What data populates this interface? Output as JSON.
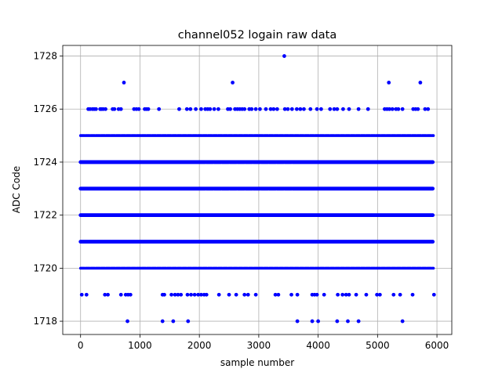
{
  "chart_data": {
    "type": "scatter",
    "title": "channel052 logain raw data",
    "xlabel": "sample number",
    "ylabel": "ADC Code",
    "xlim": [
      -300,
      6250
    ],
    "ylim": [
      1717.5,
      1728.4
    ],
    "xticks": [
      0,
      1000,
      2000,
      3000,
      4000,
      5000,
      6000
    ],
    "yticks": [
      1718,
      1720,
      1722,
      1724,
      1726,
      1728
    ],
    "grid": true,
    "marker_color": "#0000ff",
    "n_samples": 5940,
    "dense_levels": [
      {
        "y": 1720,
        "x_start": 0,
        "x_end": 5940
      },
      {
        "y": 1721,
        "x_start": 0,
        "x_end": 5940
      },
      {
        "y": 1722,
        "x_start": 0,
        "x_end": 5940
      },
      {
        "y": 1723,
        "x_start": 0,
        "x_end": 5940
      },
      {
        "y": 1724,
        "x_start": 0,
        "x_end": 5940
      },
      {
        "y": 1725,
        "x_start": 0,
        "x_end": 5940
      }
    ],
    "sparse_points": [
      {
        "y": 1728,
        "x": [
          3430
        ]
      },
      {
        "y": 1727,
        "x": [
          730,
          2560,
          5190,
          5720
        ]
      },
      {
        "y": 1726,
        "x": [
          130,
          160,
          200,
          230,
          260,
          330,
          350,
          380,
          420,
          540,
          570,
          640,
          680,
          900,
          940,
          980,
          1080,
          1110,
          1140,
          1320,
          1660,
          1790,
          1850,
          1940,
          2030,
          2100,
          2140,
          2180,
          2250,
          2320,
          2480,
          2520,
          2600,
          2640,
          2680,
          2720,
          2760,
          2840,
          2880,
          2950,
          3020,
          3120,
          3200,
          3250,
          3310,
          3440,
          3490,
          3560,
          3640,
          3700,
          3760,
          3870,
          3980,
          4050,
          4200,
          4270,
          4320,
          4420,
          4520,
          4680,
          4840,
          5120,
          5160,
          5200,
          5250,
          5310,
          5350,
          5420,
          5600,
          5640,
          5680,
          5800,
          5850
        ]
      },
      {
        "y": 1719,
        "x": [
          20,
          100,
          410,
          460,
          680,
          760,
          800,
          840,
          1380,
          1410,
          1530,
          1590,
          1640,
          1690,
          1800,
          1860,
          1920,
          1980,
          2030,
          2080,
          2120,
          2330,
          2500,
          2620,
          2760,
          2820,
          2950,
          3280,
          3330,
          3550,
          3650,
          3900,
          3940,
          3980,
          4100,
          4330,
          4410,
          4470,
          4520,
          4640,
          4810,
          4990,
          5040,
          5270,
          5380,
          5590,
          5950
        ]
      },
      {
        "y": 1718,
        "x": [
          790,
          1380,
          1560,
          1810,
          3650,
          3900,
          4000,
          4320,
          4500,
          4680,
          5420
        ]
      }
    ]
  }
}
